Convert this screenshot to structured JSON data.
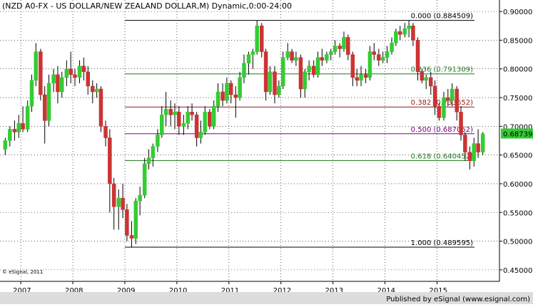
{
  "title": "(NZD A0-FX - US DOLLAR/NEW ZEALAND DOLLAR,M) Dynamic,0:00-24:00",
  "watermark": "© eSignal, 2011",
  "publisher": "Published by eSignal (www.esignal.com)",
  "colors": {
    "background": "#ffffff",
    "grid": "#000000",
    "up_candle": "#33cc33",
    "down_candle": "#cc3333",
    "wick": "#000000",
    "fib_0": "#000000",
    "fib_236": "#1c7a1c",
    "fib_382": "#8a1c1c",
    "fib_500": "#800080",
    "fib_618": "#1c7a1c",
    "fib_100": "#000000",
    "last_price_box": "#33cc33",
    "footer_bg": "#dddddd"
  },
  "chart_data": {
    "type": "candlestick",
    "series_frequency": "monthly",
    "ylim": [
      0.43,
      0.92
    ],
    "grid": true,
    "y_ticks": [
      "0.900009",
      "0.850009",
      "0.800009",
      "0.750009",
      "0.700009",
      "0.650009",
      "0.600009",
      "0.550009",
      "0.500009",
      "0.450009"
    ],
    "y_tick_values": [
      0.900009,
      0.850009,
      0.800009,
      0.750009,
      0.700009,
      0.650009,
      0.600009,
      0.550009,
      0.500009,
      0.450009
    ],
    "x_ticks": [
      "2007",
      "2008",
      "2009",
      "2010",
      "2011",
      "2012",
      "2013",
      "2014",
      "2015"
    ],
    "x_tick_years": [
      2007,
      2008,
      2009,
      2010,
      2011,
      2012,
      2013,
      2014,
      2015
    ],
    "x_range_years": [
      2006.6,
      2016.2
    ],
    "last_price": "0.68739",
    "last_price_value": 0.68739,
    "fibonacci": [
      {
        "label": "0.000 (0.884509)",
        "value": 0.884509,
        "color_key": "fib_0"
      },
      {
        "label": "0.236 (0.791309)",
        "value": 0.791309,
        "color_key": "fib_236"
      },
      {
        "label": "0.382 (0.733652)",
        "value": 0.733652,
        "color_key": "fib_382"
      },
      {
        "label": "0.500 (0.687052)",
        "value": 0.687052,
        "color_key": "fib_500"
      },
      {
        "label": "0.618 (0.640452)",
        "value": 0.640452,
        "color_key": "fib_618"
      },
      {
        "label": "1.000 (0.489595)",
        "value": 0.489595,
        "color_key": "fib_100"
      }
    ],
    "fib_start_year": 2009.0,
    "fib_end_year": 2015.72,
    "candles": [
      {
        "t": 2006.7,
        "o": 0.66,
        "h": 0.68,
        "l": 0.65,
        "c": 0.675
      },
      {
        "t": 2006.79,
        "o": 0.675,
        "h": 0.7,
        "l": 0.665,
        "c": 0.695
      },
      {
        "t": 2006.88,
        "o": 0.695,
        "h": 0.71,
        "l": 0.675,
        "c": 0.69
      },
      {
        "t": 2006.96,
        "o": 0.69,
        "h": 0.72,
        "l": 0.68,
        "c": 0.705
      },
      {
        "t": 2007.04,
        "o": 0.705,
        "h": 0.735,
        "l": 0.69,
        "c": 0.695
      },
      {
        "t": 2007.13,
        "o": 0.695,
        "h": 0.745,
        "l": 0.69,
        "c": 0.735
      },
      {
        "t": 2007.21,
        "o": 0.735,
        "h": 0.79,
        "l": 0.725,
        "c": 0.78
      },
      {
        "t": 2007.29,
        "o": 0.78,
        "h": 0.845,
        "l": 0.77,
        "c": 0.83
      },
      {
        "t": 2007.38,
        "o": 0.83,
        "h": 0.835,
        "l": 0.745,
        "c": 0.755
      },
      {
        "t": 2007.46,
        "o": 0.755,
        "h": 0.77,
        "l": 0.67,
        "c": 0.71
      },
      {
        "t": 2007.54,
        "o": 0.71,
        "h": 0.79,
        "l": 0.7,
        "c": 0.775
      },
      {
        "t": 2007.63,
        "o": 0.775,
        "h": 0.8,
        "l": 0.76,
        "c": 0.79
      },
      {
        "t": 2007.71,
        "o": 0.79,
        "h": 0.805,
        "l": 0.74,
        "c": 0.76
      },
      {
        "t": 2007.79,
        "o": 0.76,
        "h": 0.795,
        "l": 0.75,
        "c": 0.785
      },
      {
        "t": 2007.88,
        "o": 0.785,
        "h": 0.815,
        "l": 0.77,
        "c": 0.8
      },
      {
        "t": 2007.96,
        "o": 0.8,
        "h": 0.83,
        "l": 0.775,
        "c": 0.79
      },
      {
        "t": 2008.04,
        "o": 0.79,
        "h": 0.8,
        "l": 0.77,
        "c": 0.785
      },
      {
        "t": 2008.13,
        "o": 0.785,
        "h": 0.815,
        "l": 0.775,
        "c": 0.805
      },
      {
        "t": 2008.21,
        "o": 0.805,
        "h": 0.82,
        "l": 0.78,
        "c": 0.795
      },
      {
        "t": 2008.29,
        "o": 0.795,
        "h": 0.805,
        "l": 0.755,
        "c": 0.77
      },
      {
        "t": 2008.38,
        "o": 0.77,
        "h": 0.78,
        "l": 0.74,
        "c": 0.76
      },
      {
        "t": 2008.46,
        "o": 0.76,
        "h": 0.775,
        "l": 0.75,
        "c": 0.765
      },
      {
        "t": 2008.54,
        "o": 0.765,
        "h": 0.77,
        "l": 0.69,
        "c": 0.7
      },
      {
        "t": 2008.63,
        "o": 0.7,
        "h": 0.71,
        "l": 0.665,
        "c": 0.68
      },
      {
        "t": 2008.71,
        "o": 0.68,
        "h": 0.695,
        "l": 0.55,
        "c": 0.6
      },
      {
        "t": 2008.79,
        "o": 0.6,
        "h": 0.61,
        "l": 0.52,
        "c": 0.56
      },
      {
        "t": 2008.88,
        "o": 0.56,
        "h": 0.59,
        "l": 0.52,
        "c": 0.575
      },
      {
        "t": 2008.96,
        "o": 0.575,
        "h": 0.6,
        "l": 0.54,
        "c": 0.555
      },
      {
        "t": 2009.04,
        "o": 0.555,
        "h": 0.565,
        "l": 0.5,
        "c": 0.51
      },
      {
        "t": 2009.13,
        "o": 0.51,
        "h": 0.535,
        "l": 0.49,
        "c": 0.505
      },
      {
        "t": 2009.21,
        "o": 0.505,
        "h": 0.575,
        "l": 0.495,
        "c": 0.57
      },
      {
        "t": 2009.29,
        "o": 0.57,
        "h": 0.595,
        "l": 0.545,
        "c": 0.58
      },
      {
        "t": 2009.38,
        "o": 0.58,
        "h": 0.645,
        "l": 0.575,
        "c": 0.635
      },
      {
        "t": 2009.46,
        "o": 0.635,
        "h": 0.66,
        "l": 0.625,
        "c": 0.645
      },
      {
        "t": 2009.54,
        "o": 0.645,
        "h": 0.67,
        "l": 0.63,
        "c": 0.665
      },
      {
        "t": 2009.63,
        "o": 0.665,
        "h": 0.695,
        "l": 0.655,
        "c": 0.685
      },
      {
        "t": 2009.71,
        "o": 0.685,
        "h": 0.735,
        "l": 0.68,
        "c": 0.72
      },
      {
        "t": 2009.79,
        "o": 0.72,
        "h": 0.76,
        "l": 0.7,
        "c": 0.73
      },
      {
        "t": 2009.88,
        "o": 0.73,
        "h": 0.745,
        "l": 0.7,
        "c": 0.72
      },
      {
        "t": 2009.96,
        "o": 0.72,
        "h": 0.74,
        "l": 0.695,
        "c": 0.725
      },
      {
        "t": 2010.04,
        "o": 0.725,
        "h": 0.735,
        "l": 0.685,
        "c": 0.7
      },
      {
        "t": 2010.13,
        "o": 0.7,
        "h": 0.72,
        "l": 0.685,
        "c": 0.705
      },
      {
        "t": 2010.21,
        "o": 0.705,
        "h": 0.735,
        "l": 0.695,
        "c": 0.725
      },
      {
        "t": 2010.29,
        "o": 0.725,
        "h": 0.74,
        "l": 0.71,
        "c": 0.72
      },
      {
        "t": 2010.38,
        "o": 0.72,
        "h": 0.725,
        "l": 0.665,
        "c": 0.68
      },
      {
        "t": 2010.46,
        "o": 0.68,
        "h": 0.71,
        "l": 0.67,
        "c": 0.69
      },
      {
        "t": 2010.54,
        "o": 0.69,
        "h": 0.735,
        "l": 0.685,
        "c": 0.725
      },
      {
        "t": 2010.63,
        "o": 0.725,
        "h": 0.73,
        "l": 0.695,
        "c": 0.7
      },
      {
        "t": 2010.71,
        "o": 0.7,
        "h": 0.745,
        "l": 0.695,
        "c": 0.735
      },
      {
        "t": 2010.79,
        "o": 0.735,
        "h": 0.775,
        "l": 0.725,
        "c": 0.76
      },
      {
        "t": 2010.88,
        "o": 0.76,
        "h": 0.775,
        "l": 0.735,
        "c": 0.745
      },
      {
        "t": 2010.96,
        "o": 0.745,
        "h": 0.785,
        "l": 0.74,
        "c": 0.775
      },
      {
        "t": 2011.04,
        "o": 0.775,
        "h": 0.78,
        "l": 0.74,
        "c": 0.755
      },
      {
        "t": 2011.13,
        "o": 0.755,
        "h": 0.77,
        "l": 0.715,
        "c": 0.75
      },
      {
        "t": 2011.21,
        "o": 0.75,
        "h": 0.795,
        "l": 0.745,
        "c": 0.785
      },
      {
        "t": 2011.29,
        "o": 0.785,
        "h": 0.825,
        "l": 0.775,
        "c": 0.81
      },
      {
        "t": 2011.38,
        "o": 0.81,
        "h": 0.83,
        "l": 0.79,
        "c": 0.825
      },
      {
        "t": 2011.46,
        "o": 0.825,
        "h": 0.835,
        "l": 0.8,
        "c": 0.83
      },
      {
        "t": 2011.54,
        "o": 0.83,
        "h": 0.884,
        "l": 0.825,
        "c": 0.875
      },
      {
        "t": 2011.63,
        "o": 0.875,
        "h": 0.88,
        "l": 0.82,
        "c": 0.83
      },
      {
        "t": 2011.71,
        "o": 0.83,
        "h": 0.835,
        "l": 0.745,
        "c": 0.76
      },
      {
        "t": 2011.79,
        "o": 0.76,
        "h": 0.805,
        "l": 0.755,
        "c": 0.795
      },
      {
        "t": 2011.88,
        "o": 0.795,
        "h": 0.805,
        "l": 0.74,
        "c": 0.755
      },
      {
        "t": 2011.96,
        "o": 0.755,
        "h": 0.78,
        "l": 0.75,
        "c": 0.77
      },
      {
        "t": 2012.04,
        "o": 0.77,
        "h": 0.83,
        "l": 0.765,
        "c": 0.82
      },
      {
        "t": 2012.13,
        "o": 0.82,
        "h": 0.845,
        "l": 0.815,
        "c": 0.83
      },
      {
        "t": 2012.21,
        "o": 0.83,
        "h": 0.835,
        "l": 0.81,
        "c": 0.815
      },
      {
        "t": 2012.29,
        "o": 0.815,
        "h": 0.83,
        "l": 0.805,
        "c": 0.82
      },
      {
        "t": 2012.38,
        "o": 0.82,
        "h": 0.825,
        "l": 0.75,
        "c": 0.765
      },
      {
        "t": 2012.46,
        "o": 0.765,
        "h": 0.8,
        "l": 0.75,
        "c": 0.795
      },
      {
        "t": 2012.54,
        "o": 0.795,
        "h": 0.815,
        "l": 0.78,
        "c": 0.805
      },
      {
        "t": 2012.63,
        "o": 0.805,
        "h": 0.815,
        "l": 0.785,
        "c": 0.79
      },
      {
        "t": 2012.71,
        "o": 0.79,
        "h": 0.83,
        "l": 0.785,
        "c": 0.82
      },
      {
        "t": 2012.79,
        "o": 0.82,
        "h": 0.835,
        "l": 0.805,
        "c": 0.815
      },
      {
        "t": 2012.88,
        "o": 0.815,
        "h": 0.83,
        "l": 0.81,
        "c": 0.825
      },
      {
        "t": 2012.96,
        "o": 0.825,
        "h": 0.835,
        "l": 0.815,
        "c": 0.83
      },
      {
        "t": 2013.04,
        "o": 0.83,
        "h": 0.85,
        "l": 0.825,
        "c": 0.84
      },
      {
        "t": 2013.13,
        "o": 0.84,
        "h": 0.845,
        "l": 0.82,
        "c": 0.835
      },
      {
        "t": 2013.21,
        "o": 0.835,
        "h": 0.865,
        "l": 0.83,
        "c": 0.855
      },
      {
        "t": 2013.29,
        "o": 0.855,
        "h": 0.86,
        "l": 0.815,
        "c": 0.825
      },
      {
        "t": 2013.38,
        "o": 0.825,
        "h": 0.83,
        "l": 0.77,
        "c": 0.785
      },
      {
        "t": 2013.46,
        "o": 0.785,
        "h": 0.8,
        "l": 0.77,
        "c": 0.78
      },
      {
        "t": 2013.54,
        "o": 0.78,
        "h": 0.805,
        "l": 0.77,
        "c": 0.79
      },
      {
        "t": 2013.63,
        "o": 0.79,
        "h": 0.8,
        "l": 0.775,
        "c": 0.785
      },
      {
        "t": 2013.71,
        "o": 0.785,
        "h": 0.84,
        "l": 0.78,
        "c": 0.83
      },
      {
        "t": 2013.79,
        "o": 0.83,
        "h": 0.845,
        "l": 0.815,
        "c": 0.825
      },
      {
        "t": 2013.88,
        "o": 0.825,
        "h": 0.835,
        "l": 0.805,
        "c": 0.815
      },
      {
        "t": 2013.96,
        "o": 0.815,
        "h": 0.83,
        "l": 0.81,
        "c": 0.82
      },
      {
        "t": 2014.04,
        "o": 0.82,
        "h": 0.84,
        "l": 0.81,
        "c": 0.83
      },
      {
        "t": 2014.13,
        "o": 0.83,
        "h": 0.855,
        "l": 0.825,
        "c": 0.845
      },
      {
        "t": 2014.21,
        "o": 0.845,
        "h": 0.87,
        "l": 0.84,
        "c": 0.865
      },
      {
        "t": 2014.29,
        "o": 0.865,
        "h": 0.875,
        "l": 0.85,
        "c": 0.86
      },
      {
        "t": 2014.38,
        "o": 0.86,
        "h": 0.88,
        "l": 0.855,
        "c": 0.87
      },
      {
        "t": 2014.46,
        "o": 0.87,
        "h": 0.884,
        "l": 0.855,
        "c": 0.875
      },
      {
        "t": 2014.54,
        "o": 0.875,
        "h": 0.88,
        "l": 0.84,
        "c": 0.85
      },
      {
        "t": 2014.63,
        "o": 0.85,
        "h": 0.855,
        "l": 0.78,
        "c": 0.795
      },
      {
        "t": 2014.71,
        "o": 0.795,
        "h": 0.8,
        "l": 0.775,
        "c": 0.78
      },
      {
        "t": 2014.79,
        "o": 0.78,
        "h": 0.79,
        "l": 0.765,
        "c": 0.785
      },
      {
        "t": 2014.88,
        "o": 0.785,
        "h": 0.795,
        "l": 0.755,
        "c": 0.77
      },
      {
        "t": 2014.96,
        "o": 0.77,
        "h": 0.78,
        "l": 0.72,
        "c": 0.735
      },
      {
        "t": 2015.04,
        "o": 0.735,
        "h": 0.74,
        "l": 0.71,
        "c": 0.715
      },
      {
        "t": 2015.13,
        "o": 0.715,
        "h": 0.76,
        "l": 0.71,
        "c": 0.75
      },
      {
        "t": 2015.21,
        "o": 0.75,
        "h": 0.765,
        "l": 0.735,
        "c": 0.745
      },
      {
        "t": 2015.29,
        "o": 0.745,
        "h": 0.775,
        "l": 0.735,
        "c": 0.765
      },
      {
        "t": 2015.38,
        "o": 0.765,
        "h": 0.77,
        "l": 0.71,
        "c": 0.725
      },
      {
        "t": 2015.46,
        "o": 0.725,
        "h": 0.735,
        "l": 0.675,
        "c": 0.685
      },
      {
        "t": 2015.54,
        "o": 0.685,
        "h": 0.69,
        "l": 0.64,
        "c": 0.655
      },
      {
        "t": 2015.63,
        "o": 0.655,
        "h": 0.665,
        "l": 0.625,
        "c": 0.64
      },
      {
        "t": 2015.71,
        "o": 0.64,
        "h": 0.68,
        "l": 0.63,
        "c": 0.67
      },
      {
        "t": 2015.79,
        "o": 0.67,
        "h": 0.695,
        "l": 0.645,
        "c": 0.655
      },
      {
        "t": 2015.88,
        "o": 0.655,
        "h": 0.69,
        "l": 0.65,
        "c": 0.687
      }
    ]
  }
}
